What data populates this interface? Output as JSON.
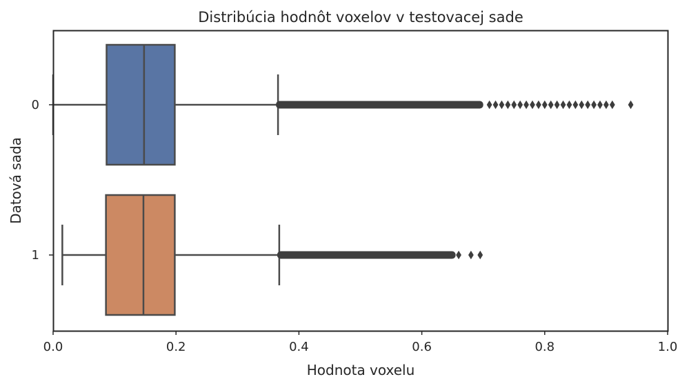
{
  "chart_data": {
    "type": "boxplot",
    "orientation": "horizontal",
    "title": "Distribúcia hodnôt voxelov v testovacej sade",
    "xlabel": "Hodnota voxelu",
    "ylabel": "Datová sada",
    "xlim": [
      0.0,
      1.0
    ],
    "xticks": [
      0.0,
      0.2,
      0.4,
      0.6,
      0.8,
      1.0
    ],
    "x_tick_labels": [
      "0.0",
      "0.2",
      "0.4",
      "0.6",
      "0.8",
      "1.0"
    ],
    "categories": [
      "0",
      "1"
    ],
    "grid": false,
    "series": [
      {
        "category": "0",
        "color": "#5975a4",
        "whisker_low": 0.0,
        "q1": 0.087,
        "median": 0.148,
        "q3": 0.198,
        "whisker_high": 0.366,
        "outliers_dense_range": [
          0.366,
          0.7
        ],
        "outliers": [
          0.71,
          0.72,
          0.73,
          0.74,
          0.75,
          0.76,
          0.77,
          0.78,
          0.79,
          0.8,
          0.81,
          0.82,
          0.83,
          0.84,
          0.85,
          0.86,
          0.87,
          0.88,
          0.89,
          0.9,
          0.91,
          0.94
        ]
      },
      {
        "category": "1",
        "color": "#cc8963",
        "whisker_low": 0.015,
        "q1": 0.086,
        "median": 0.147,
        "q3": 0.198,
        "whisker_high": 0.368,
        "outliers_dense_range": [
          0.368,
          0.655
        ],
        "outliers": [
          0.66,
          0.68,
          0.695
        ]
      }
    ]
  }
}
